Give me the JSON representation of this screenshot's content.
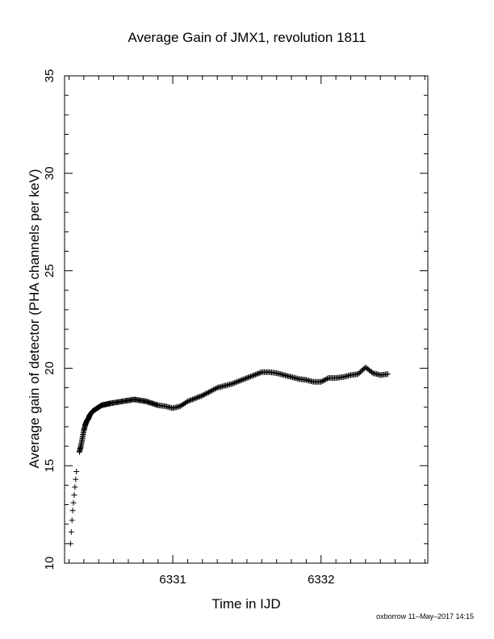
{
  "chart_data": {
    "type": "scatter",
    "title": "Average Gain of JMX1, revolution 1811",
    "xlabel": "Time in IJD",
    "ylabel": "Average gain of detector (PHA channels per keV)",
    "xlim": [
      6330.27,
      6332.72
    ],
    "ylim": [
      10,
      35
    ],
    "xticks": [
      6331,
      6332
    ],
    "yticks": [
      10,
      15,
      20,
      25,
      30,
      35
    ],
    "grid": false,
    "marker": "plus",
    "color": "#000000",
    "x": [
      6330.31,
      6330.315,
      6330.32,
      6330.325,
      6330.33,
      6330.335,
      6330.34,
      6330.345,
      6330.35,
      6330.37,
      6330.38,
      6330.39,
      6330.4,
      6330.41,
      6330.42,
      6330.43,
      6330.44,
      6330.46,
      6330.48,
      6330.5,
      6330.52,
      6330.55,
      6330.58,
      6330.62,
      6330.66,
      6330.7,
      6330.74,
      6330.78,
      6330.82,
      6330.86,
      6330.9,
      6330.95,
      6331.0,
      6331.05,
      6331.1,
      6331.15,
      6331.2,
      6331.25,
      6331.3,
      6331.35,
      6331.4,
      6331.45,
      6331.5,
      6331.55,
      6331.6,
      6331.65,
      6331.7,
      6331.75,
      6331.8,
      6331.85,
      6331.9,
      6331.95,
      6332.0,
      6332.05,
      6332.1,
      6332.15,
      6332.2,
      6332.25,
      6332.3,
      6332.35,
      6332.4,
      6332.45
    ],
    "y": [
      11.0,
      11.6,
      12.2,
      12.7,
      13.1,
      13.5,
      13.9,
      14.3,
      14.7,
      15.7,
      16.0,
      16.4,
      16.8,
      17.1,
      17.3,
      17.4,
      17.6,
      17.8,
      17.9,
      18.0,
      18.1,
      18.15,
      18.2,
      18.25,
      18.3,
      18.35,
      18.4,
      18.35,
      18.3,
      18.2,
      18.1,
      18.05,
      17.95,
      18.05,
      18.3,
      18.45,
      18.6,
      18.8,
      19.0,
      19.1,
      19.2,
      19.35,
      19.5,
      19.65,
      19.8,
      19.8,
      19.75,
      19.65,
      19.55,
      19.45,
      19.4,
      19.3,
      19.3,
      19.5,
      19.5,
      19.55,
      19.65,
      19.7,
      20.05,
      19.75,
      19.65,
      19.7
    ]
  },
  "footer": "oxborrow 11–May–2017 14:15"
}
